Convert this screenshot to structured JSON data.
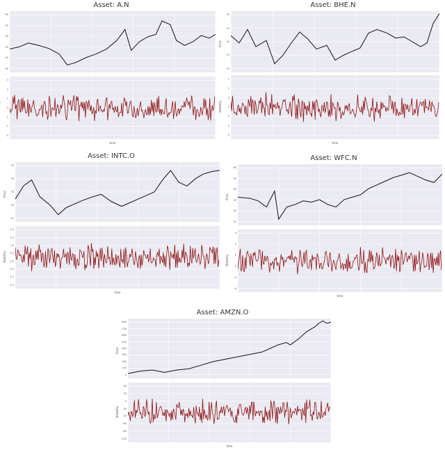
{
  "figure": {
    "description": "Five asset panels, each with a price series (black) above a volatility series (dark red). Curve coordinates are approximations of the visible shapes, not data read from the image.",
    "colors": {
      "panel_bg": "#eaeaf2",
      "grid": "#ffffff",
      "price_line": "#111111",
      "volatility_line": "#8b0e0e",
      "title": "#333333"
    }
  },
  "chart_data": [
    {
      "type": "line",
      "title": "Asset: A.N",
      "xlabel": "time",
      "subplots": [
        {
          "name": "price",
          "ylabel": "Price",
          "yticks": [
            "60",
            "55",
            "50",
            "45",
            "40",
            "35"
          ],
          "yticks_note": "Tick labels were illegible at all zoom levels; these values are plausible guesses, not readings.",
          "line_color": "#111111",
          "shape_approximation": [
            [
              0,
              62
            ],
            [
              5,
              58
            ],
            [
              9,
              52
            ],
            [
              14,
              56
            ],
            [
              19,
              61
            ],
            [
              24,
              70
            ],
            [
              28,
              88
            ],
            [
              32,
              84
            ],
            [
              37,
              76
            ],
            [
              42,
              70
            ],
            [
              47,
              62
            ],
            [
              52,
              48
            ],
            [
              56,
              30
            ],
            [
              59,
              64
            ],
            [
              63,
              50
            ],
            [
              67,
              42
            ],
            [
              71,
              38
            ],
            [
              74,
              16
            ],
            [
              78,
              22
            ],
            [
              81,
              48
            ],
            [
              85,
              56
            ],
            [
              89,
              50
            ],
            [
              93,
              40
            ],
            [
              97,
              44
            ],
            [
              100,
              38
            ]
          ]
        },
        {
          "name": "volatility",
          "ylabel": "Volatility",
          "yticks": [
            "3",
            "2",
            "1",
            "0",
            "-1",
            "-2",
            "-3"
          ],
          "line_color": "#8b0e0e",
          "shape": "noise around 0, spikes up to about +3 and down to about -3"
        }
      ]
    },
    {
      "type": "line",
      "title": "Asset: BHE.N",
      "xlabel": "time",
      "subplots": [
        {
          "name": "price",
          "ylabel": "Price",
          "yticks": [
            "30",
            "25",
            "20",
            "15",
            "10"
          ],
          "yticks_note": "Partially legible; values approximate.",
          "line_color": "#111111",
          "shape_approximation": [
            [
              0,
              40
            ],
            [
              4,
              52
            ],
            [
              8,
              30
            ],
            [
              12,
              58
            ],
            [
              17,
              48
            ],
            [
              21,
              86
            ],
            [
              25,
              72
            ],
            [
              29,
              52
            ],
            [
              33,
              34
            ],
            [
              37,
              46
            ],
            [
              41,
              62
            ],
            [
              46,
              56
            ],
            [
              50,
              80
            ],
            [
              54,
              72
            ],
            [
              58,
              66
            ],
            [
              62,
              60
            ],
            [
              66,
              36
            ],
            [
              70,
              30
            ],
            [
              75,
              36
            ],
            [
              79,
              44
            ],
            [
              83,
              42
            ],
            [
              87,
              50
            ],
            [
              91,
              58
            ],
            [
              94,
              52
            ],
            [
              97,
              20
            ],
            [
              100,
              4
            ]
          ]
        },
        {
          "name": "volatility",
          "ylabel": "Volatility",
          "yticks": [
            "2",
            "1",
            "0",
            "-1",
            "-2",
            "-3",
            "-4"
          ],
          "line_color": "#8b0e0e",
          "shape": "noise around 0, one large downward spike near -4 early in the series"
        }
      ]
    },
    {
      "type": "line",
      "title": "Asset: INTC.O",
      "xlabel": "time",
      "subplots": [
        {
          "name": "price",
          "ylabel": "Price",
          "yticks": [
            "35",
            "30",
            "25",
            "20",
            "15"
          ],
          "yticks_note": "Partially legible; values approximate.",
          "line_color": "#111111",
          "shape_approximation": [
            [
              0,
              62
            ],
            [
              4,
              40
            ],
            [
              8,
              30
            ],
            [
              12,
              58
            ],
            [
              17,
              72
            ],
            [
              21,
              88
            ],
            [
              25,
              76
            ],
            [
              29,
              70
            ],
            [
              33,
              64
            ],
            [
              38,
              58
            ],
            [
              42,
              54
            ],
            [
              47,
              66
            ],
            [
              52,
              74
            ],
            [
              56,
              68
            ],
            [
              60,
              62
            ],
            [
              64,
              56
            ],
            [
              68,
              50
            ],
            [
              72,
              30
            ],
            [
              76,
              14
            ],
            [
              80,
              34
            ],
            [
              84,
              40
            ],
            [
              88,
              28
            ],
            [
              92,
              20
            ],
            [
              96,
              16
            ],
            [
              100,
              14
            ]
          ]
        },
        {
          "name": "volatility",
          "ylabel": "Volatility",
          "yticks": [
            "2.0",
            "1.5",
            "1.0",
            "0.5",
            "0.0",
            "-0.5",
            "-1.0",
            "-1.5"
          ],
          "line_color": "#8b0e0e",
          "shape": "noise around 0, larger excursions near the start and in the last third"
        }
      ]
    },
    {
      "type": "line",
      "title": "Asset: WFC.N",
      "xlabel": "time",
      "subplots": [
        {
          "name": "price",
          "ylabel": "Price",
          "yticks": [
            "60",
            "50",
            "40",
            "30",
            "20",
            "10"
          ],
          "line_color": "#111111",
          "shape_approximation": [
            [
              0,
              54
            ],
            [
              6,
              56
            ],
            [
              10,
              60
            ],
            [
              14,
              70
            ],
            [
              18,
              44
            ],
            [
              20,
              90
            ],
            [
              24,
              70
            ],
            [
              28,
              66
            ],
            [
              32,
              60
            ],
            [
              36,
              62
            ],
            [
              40,
              58
            ],
            [
              44,
              66
            ],
            [
              48,
              70
            ],
            [
              52,
              58
            ],
            [
              56,
              54
            ],
            [
              60,
              50
            ],
            [
              64,
              40
            ],
            [
              68,
              34
            ],
            [
              72,
              28
            ],
            [
              76,
              22
            ],
            [
              80,
              18
            ],
            [
              84,
              14
            ],
            [
              88,
              20
            ],
            [
              92,
              26
            ],
            [
              96,
              30
            ],
            [
              100,
              16
            ]
          ]
        },
        {
          "name": "volatility",
          "ylabel": "Volatility",
          "yticks": [
            "4",
            "2",
            "0",
            "-2",
            "-4",
            "-6"
          ],
          "line_color": "#8b0e0e",
          "shape": "noise around 0, a burst of large swings (about +4 to -6) around 20% of the series"
        }
      ]
    },
    {
      "type": "line",
      "title": "Asset: AMZN.O",
      "xlabel": "time",
      "subplots": [
        {
          "name": "price",
          "ylabel": "Price",
          "yticks": [
            "800",
            "700",
            "600",
            "500",
            "400",
            "300",
            "200",
            "100",
            "0"
          ],
          "line_color": "#111111",
          "shape_approximation": [
            [
              0,
              92
            ],
            [
              6,
              88
            ],
            [
              12,
              86
            ],
            [
              18,
              90
            ],
            [
              24,
              86
            ],
            [
              30,
              84
            ],
            [
              36,
              78
            ],
            [
              42,
              72
            ],
            [
              48,
              68
            ],
            [
              54,
              64
            ],
            [
              60,
              60
            ],
            [
              66,
              56
            ],
            [
              70,
              50
            ],
            [
              74,
              44
            ],
            [
              78,
              40
            ],
            [
              80,
              44
            ],
            [
              84,
              34
            ],
            [
              88,
              22
            ],
            [
              90,
              18
            ],
            [
              92,
              14
            ],
            [
              94,
              8
            ],
            [
              96,
              4
            ],
            [
              98,
              8
            ],
            [
              100,
              6
            ]
          ]
        },
        {
          "name": "volatility",
          "ylabel": "Volatility",
          "yticks": [
            "40",
            "20",
            "0",
            "-20",
            "-40",
            "-60",
            "-80",
            "-100"
          ],
          "yticks_note": "Partially legible; intermediate values approximate.",
          "line_color": "#8b0e0e",
          "shape": "small noise early, amplitude grows over time; large downward spikes near -100 late in the series"
        }
      ]
    }
  ]
}
